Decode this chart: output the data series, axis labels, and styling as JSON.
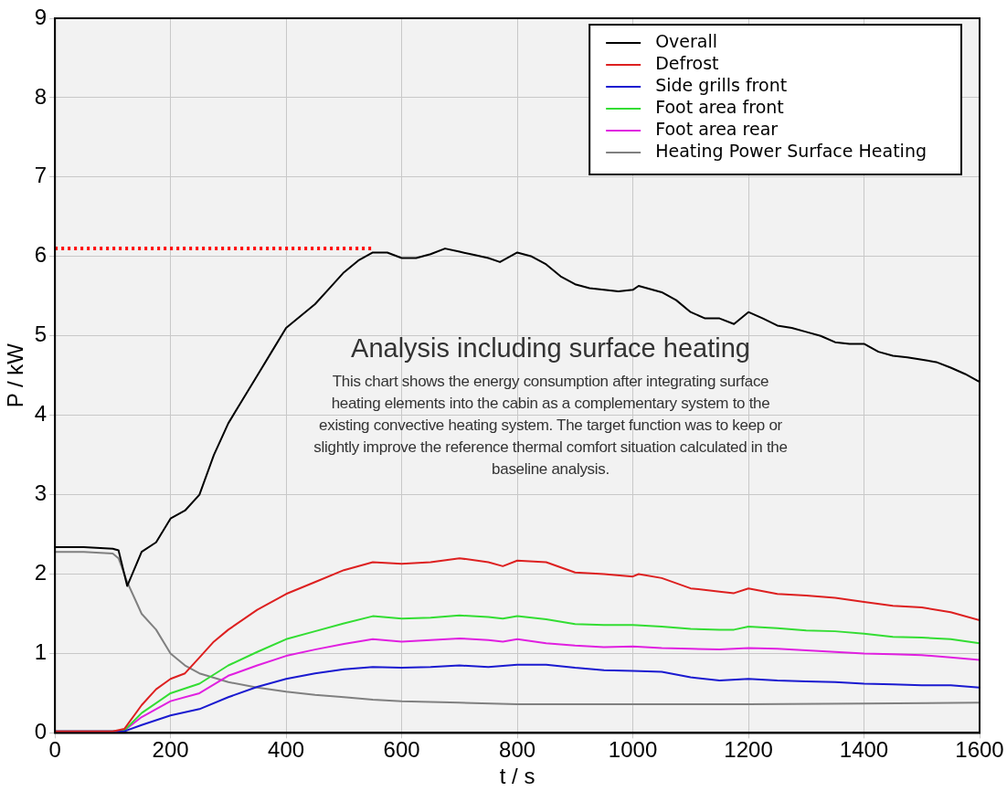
{
  "chart_data": {
    "type": "line",
    "xlabel": "t / s",
    "ylabel": "P / kW",
    "xlim": [
      0,
      1600
    ],
    "xticks": [
      0,
      200,
      400,
      600,
      800,
      1000,
      1200,
      1400,
      1600
    ],
    "ylim": [
      0,
      9
    ],
    "yticks": [
      0,
      1,
      2,
      3,
      4,
      5,
      6,
      7,
      8,
      9
    ],
    "grid": true,
    "legend": "top right",
    "marker": "none",
    "line_style": "solid",
    "annotations": [
      "Analysis including surface heating",
      "This chart shows the energy consumption after integrating surface heating elements into the cabin as a complementary system to the existing convective heating system. The target function was to keep or slightly improve the reference thermal comfort situation calculated in the baseline analysis."
    ],
    "series": [
      {
        "name": "Overall",
        "color": "#000000",
        "x": [
          0,
          50,
          100,
          110,
          125,
          150,
          175,
          200,
          225,
          250,
          275,
          300,
          325,
          350,
          375,
          400,
          425,
          450,
          475,
          500,
          525,
          550,
          575,
          600,
          625,
          650,
          675,
          700,
          725,
          750,
          770,
          800,
          825,
          850,
          875,
          900,
          925,
          950,
          975,
          1000,
          1010,
          1050,
          1075,
          1100,
          1125,
          1150,
          1175,
          1200,
          1225,
          1250,
          1275,
          1300,
          1325,
          1350,
          1375,
          1400,
          1425,
          1450,
          1475,
          1500,
          1525,
          1550,
          1575,
          1600
        ],
        "values": [
          2.34,
          2.34,
          2.32,
          2.3,
          1.85,
          2.28,
          2.4,
          2.7,
          2.8,
          3.0,
          3.5,
          3.9,
          4.2,
          4.5,
          4.8,
          5.1,
          5.25,
          5.4,
          5.6,
          5.8,
          5.95,
          6.05,
          6.05,
          5.98,
          5.98,
          6.03,
          6.1,
          6.06,
          6.02,
          5.98,
          5.93,
          6.05,
          6.0,
          5.9,
          5.75,
          5.65,
          5.6,
          5.58,
          5.56,
          5.58,
          5.63,
          5.55,
          5.45,
          5.3,
          5.22,
          5.22,
          5.15,
          5.3,
          5.22,
          5.13,
          5.1,
          5.05,
          5.0,
          4.92,
          4.9,
          4.9,
          4.8,
          4.75,
          4.73,
          4.7,
          4.67,
          4.6,
          4.52,
          4.42
        ]
      },
      {
        "name": "Defrost",
        "color": "#dd2020",
        "x": [
          0,
          100,
          120,
          150,
          175,
          200,
          225,
          250,
          275,
          300,
          350,
          400,
          450,
          500,
          550,
          600,
          650,
          700,
          750,
          775,
          800,
          850,
          900,
          950,
          1000,
          1010,
          1050,
          1100,
          1150,
          1175,
          1200,
          1250,
          1300,
          1350,
          1400,
          1450,
          1500,
          1550,
          1600
        ],
        "values": [
          0.02,
          0.02,
          0.05,
          0.35,
          0.55,
          0.68,
          0.75,
          0.95,
          1.15,
          1.3,
          1.55,
          1.75,
          1.9,
          2.05,
          2.15,
          2.13,
          2.15,
          2.2,
          2.15,
          2.1,
          2.17,
          2.15,
          2.02,
          2.0,
          1.97,
          2.0,
          1.95,
          1.82,
          1.78,
          1.76,
          1.82,
          1.75,
          1.73,
          1.7,
          1.65,
          1.6,
          1.58,
          1.52,
          1.42
        ]
      },
      {
        "name": "Side grills front",
        "color": "#1a1ad0",
        "x": [
          0,
          100,
          120,
          150,
          200,
          250,
          300,
          350,
          400,
          450,
          500,
          550,
          600,
          650,
          700,
          750,
          800,
          850,
          900,
          950,
          1000,
          1050,
          1100,
          1150,
          1200,
          1250,
          1300,
          1350,
          1400,
          1450,
          1500,
          1550,
          1600
        ],
        "values": [
          0.02,
          0.02,
          0.02,
          0.1,
          0.22,
          0.3,
          0.45,
          0.58,
          0.68,
          0.75,
          0.8,
          0.83,
          0.82,
          0.83,
          0.85,
          0.83,
          0.86,
          0.86,
          0.82,
          0.79,
          0.78,
          0.77,
          0.7,
          0.66,
          0.68,
          0.66,
          0.65,
          0.64,
          0.62,
          0.61,
          0.6,
          0.6,
          0.57
        ]
      },
      {
        "name": "Foot area front",
        "color": "#33dd33",
        "x": [
          0,
          100,
          120,
          150,
          200,
          250,
          300,
          350,
          400,
          450,
          500,
          550,
          600,
          650,
          700,
          750,
          775,
          800,
          850,
          900,
          950,
          1000,
          1050,
          1100,
          1150,
          1175,
          1200,
          1250,
          1300,
          1350,
          1400,
          1450,
          1500,
          1550,
          1600
        ],
        "values": [
          0.02,
          0.02,
          0.03,
          0.25,
          0.5,
          0.62,
          0.85,
          1.02,
          1.18,
          1.28,
          1.38,
          1.47,
          1.44,
          1.45,
          1.48,
          1.46,
          1.44,
          1.47,
          1.43,
          1.37,
          1.36,
          1.36,
          1.34,
          1.31,
          1.3,
          1.3,
          1.34,
          1.32,
          1.29,
          1.28,
          1.25,
          1.21,
          1.2,
          1.18,
          1.13
        ]
      },
      {
        "name": "Foot area rear",
        "color": "#e020e0",
        "x": [
          0,
          100,
          120,
          150,
          200,
          250,
          300,
          350,
          400,
          450,
          500,
          550,
          600,
          650,
          700,
          750,
          775,
          800,
          850,
          900,
          950,
          1000,
          1050,
          1100,
          1150,
          1200,
          1250,
          1300,
          1350,
          1400,
          1450,
          1500,
          1550,
          1600
        ],
        "values": [
          0.02,
          0.02,
          0.03,
          0.2,
          0.4,
          0.5,
          0.72,
          0.85,
          0.97,
          1.05,
          1.12,
          1.18,
          1.15,
          1.17,
          1.19,
          1.17,
          1.15,
          1.18,
          1.13,
          1.1,
          1.08,
          1.09,
          1.07,
          1.06,
          1.05,
          1.07,
          1.06,
          1.04,
          1.02,
          1.0,
          0.99,
          0.98,
          0.95,
          0.92
        ]
      },
      {
        "name": "Heating Power Surface Heating",
        "color": "#808080",
        "x": [
          0,
          50,
          100,
          110,
          125,
          150,
          175,
          200,
          225,
          250,
          300,
          350,
          400,
          450,
          500,
          550,
          600,
          700,
          800,
          900,
          1000,
          1200,
          1400,
          1600
        ],
        "values": [
          2.28,
          2.28,
          2.26,
          2.2,
          1.9,
          1.5,
          1.3,
          1.0,
          0.85,
          0.75,
          0.64,
          0.57,
          0.52,
          0.48,
          0.45,
          0.42,
          0.4,
          0.38,
          0.36,
          0.36,
          0.36,
          0.36,
          0.37,
          0.38
        ]
      },
      {
        "color": "#ff0000",
        "line_style": "dotted",
        "x": [
          0,
          550
        ],
        "values": [
          6.1,
          6.1
        ]
      }
    ]
  }
}
